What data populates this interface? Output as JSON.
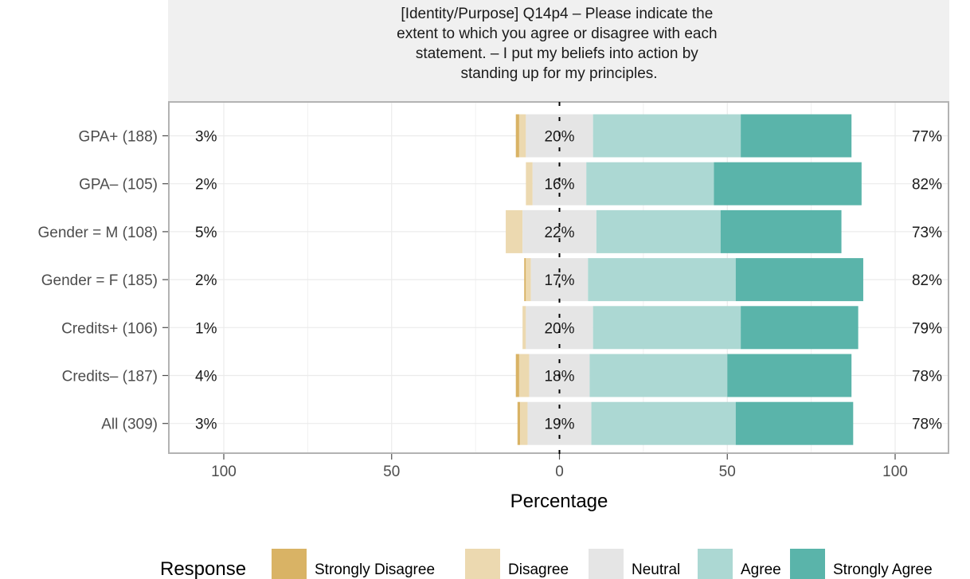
{
  "chart_data": {
    "type": "bar",
    "title_lines": [
      "[Identity/Purpose] Q14p4 – Please indicate the",
      "extent to which you agree or disagree with each",
      "statement. – I put my beliefs into action by",
      "standing up for my principles."
    ],
    "xlabel": "Percentage",
    "xlim": [
      -100,
      100
    ],
    "x_ticks": [
      -100,
      -50,
      0,
      50,
      100
    ],
    "x_tick_labels": [
      "100",
      "50",
      "0",
      "50",
      "100"
    ],
    "grid": true,
    "legend": {
      "title": "Response",
      "position": "bottom",
      "items": [
        "Strongly Disagree",
        "Disagree",
        "Neutral",
        "Agree",
        "Strongly Agree"
      ]
    },
    "colors": {
      "Strongly Disagree": "#d9b365",
      "Disagree": "#ecd9b0",
      "Neutral": "#e5e5e5",
      "Agree": "#acd8d3",
      "Strongly Agree": "#5ab4aa"
    },
    "categories": [
      "GPA+ (188)",
      "GPA– (105)",
      "Gender = M (108)",
      "Gender = F (185)",
      "Credits+ (106)",
      "Credits– (187)",
      "All (309)"
    ],
    "series": [
      {
        "name": "Strongly Disagree",
        "values": [
          1,
          0,
          0,
          0.5,
          0,
          1,
          0.8
        ]
      },
      {
        "name": "Disagree",
        "values": [
          2,
          2,
          5,
          1.5,
          1,
          3,
          2.2
        ]
      },
      {
        "name": "Neutral",
        "values": [
          20,
          16,
          22,
          17,
          20,
          18,
          19
        ]
      },
      {
        "name": "Agree",
        "values": [
          44,
          38,
          37,
          44,
          44,
          41,
          43
        ]
      },
      {
        "name": "Strongly Agree",
        "values": [
          33,
          44,
          36,
          38,
          35,
          37,
          35
        ]
      }
    ],
    "left_labels": [
      "3%",
      "2%",
      "5%",
      "2%",
      "1%",
      "4%",
      "3%"
    ],
    "center_labels": [
      "20%",
      "16%",
      "22%",
      "17%",
      "20%",
      "18%",
      "19%"
    ],
    "right_labels": [
      "77%",
      "82%",
      "73%",
      "82%",
      "79%",
      "78%",
      "78%"
    ]
  }
}
